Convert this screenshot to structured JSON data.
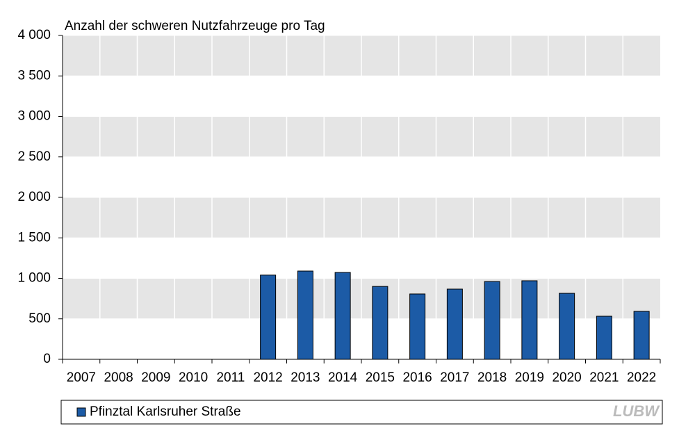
{
  "chart_data": {
    "type": "bar",
    "title": "Anzahl  der schweren Nutzfahrzeuge  pro Tag",
    "categories": [
      "2007",
      "2008",
      "2009",
      "2010",
      "2011",
      "2012",
      "2013",
      "2014",
      "2015",
      "2016",
      "2017",
      "2018",
      "2019",
      "2020",
      "2021",
      "2022"
    ],
    "series": [
      {
        "name": "Pfinztal Karlsruher Straße",
        "color": "#1c5ba6",
        "values": [
          null,
          null,
          null,
          null,
          null,
          1040,
          1090,
          1073,
          900,
          807,
          867,
          961,
          970,
          815,
          532,
          592
        ]
      }
    ],
    "ylim": [
      0,
      4000
    ],
    "yticks": [
      0,
      500,
      {
        "value": 1000,
        "label": "1 000"
      },
      {
        "value": 1500,
        "label": "1 500"
      },
      {
        "value": 2000,
        "label": "2 000"
      },
      {
        "value": 2500,
        "label": "2 500"
      },
      {
        "value": 3000,
        "label": "3 000"
      },
      {
        "value": 3500,
        "label": "3 500"
      },
      {
        "value": 4000,
        "label": "4 000"
      }
    ],
    "grid": true,
    "legend": "bottom",
    "logo": "LUBW"
  }
}
